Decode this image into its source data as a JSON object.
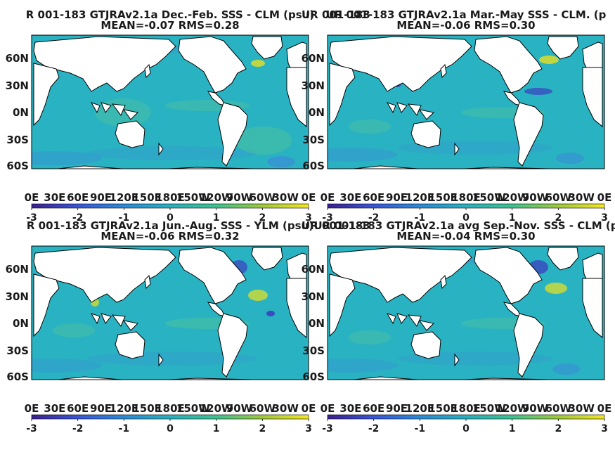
{
  "panels": [
    {
      "title": "R 001-183 GTJRAv2.1a  Dec.-Feb. SSS - CLM (psu)",
      "overlap_title": "UR 001-183",
      "stats": "MEAN=-0.07   RMS=0.28"
    },
    {
      "title": "UR 001-183 GTJRAv2.1a Mar.-May SSS - CLM. (p",
      "stats": "MEAN=-0.06   RMS=0.30"
    },
    {
      "title": "R 001-183 GTJRAv2.1a Jun.-Aug. SSS - YLM (psu)",
      "overlap_title": "UR 001-183",
      "stats": "MEAN=-0.06   RMS=0.32"
    },
    {
      "title": "UR 001-183 GTJRAv2.1a avg Sep.-Nov. SSS - CLM (p",
      "stats": "MEAN=-0.04   RMS=0.30"
    }
  ],
  "lat_labels": [
    "60N",
    "30N",
    "0N",
    "30S",
    "60S"
  ],
  "lon_labels": [
    "0E",
    "30E",
    "60E",
    "90E",
    "120E",
    "150E",
    "180E",
    "150W",
    "120W",
    "90W",
    "60W",
    "30W",
    "0E"
  ],
  "colorbar": {
    "ticks": [
      "-3",
      "-2",
      "-1",
      "0",
      "1",
      "2",
      "3"
    ],
    "stops": [
      "#3b1f8f",
      "#3a55d8",
      "#2a8ad8",
      "#26b0bf",
      "#3cc28f",
      "#9fc93a",
      "#f4e622"
    ]
  },
  "colors": {
    "ocean_base": "#29b3c2",
    "ocean_cool": "#3d86d9",
    "ocean_fresh": "#3b3fbf",
    "ocean_green": "#5fc88a",
    "ocean_warm": "#c9d83a",
    "land": "#ffffff",
    "coast": "#000000"
  }
}
